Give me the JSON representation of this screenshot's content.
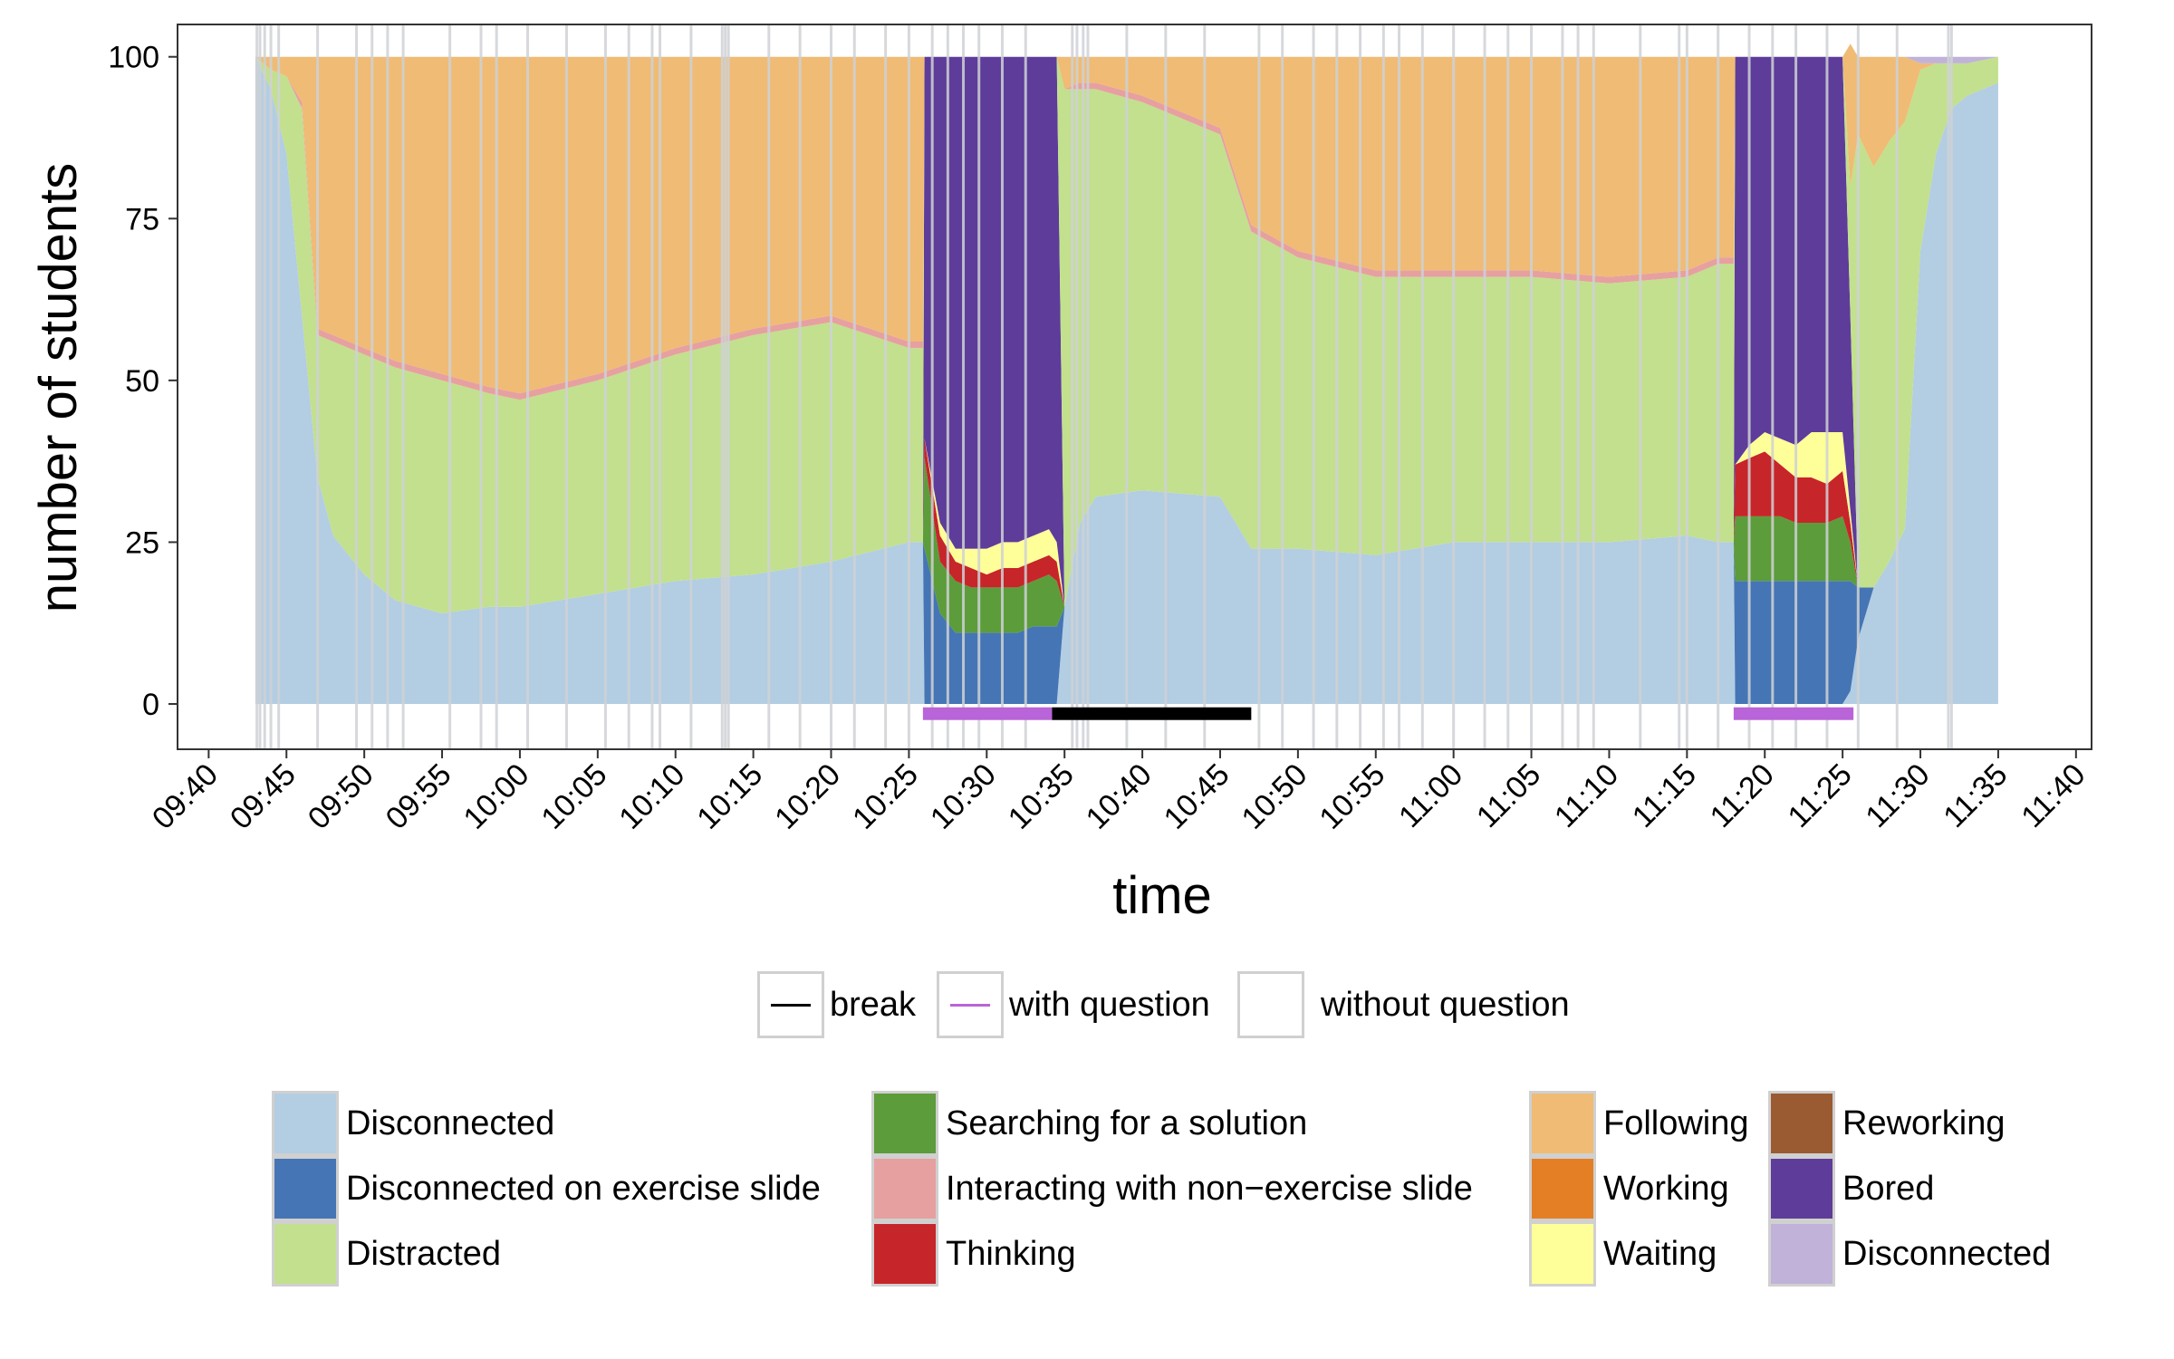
{
  "chart_data": {
    "type": "area",
    "title": "",
    "xlabel": "time",
    "ylabel": "number of students",
    "x_range": [
      "09:38",
      "11:41"
    ],
    "ylim": [
      -7,
      105
    ],
    "y_ticks": [
      0,
      25,
      50,
      75,
      100
    ],
    "x_ticks": [
      "09:40",
      "09:45",
      "09:50",
      "09:55",
      "10:00",
      "10:05",
      "10:10",
      "10:15",
      "10:20",
      "10:25",
      "10:30",
      "10:35",
      "10:40",
      "10:45",
      "10:50",
      "10:55",
      "11:00",
      "11:05",
      "11:10",
      "11:15",
      "11:20",
      "11:25",
      "11:30",
      "11:35",
      "11:40"
    ],
    "grid": false,
    "stack_order": [
      "Disconnected",
      "Disconnected on exercise slide",
      "Searching for a solution",
      "Thinking",
      "Waiting",
      "Bored",
      "Distracted",
      "Interacting with non-exercise slide",
      "Following",
      "Disconnected (2)"
    ],
    "x": [
      "09:43",
      "09:44",
      "09:45",
      "09:46",
      "09:47",
      "09:48",
      "09:50",
      "09:52",
      "09:55",
      "09:58",
      "10:00",
      "10:05",
      "10:10",
      "10:15",
      "10:20",
      "10:25",
      "10:25.9",
      "10:26",
      "10:27",
      "10:28",
      "10:29",
      "10:30",
      "10:31",
      "10:32",
      "10:33",
      "10:34",
      "10:34.5",
      "10:35",
      "10:36",
      "10:37",
      "10:40",
      "10:45",
      "10:47",
      "10:50",
      "10:55",
      "11:00",
      "11:05",
      "11:10",
      "11:15",
      "11:17",
      "11:18",
      "11:18.1",
      "11:19",
      "11:20",
      "11:21",
      "11:22",
      "11:23",
      "11:24",
      "11:25",
      "11:25.5",
      "11:26",
      "11:27",
      "11:28",
      "11:29",
      "11:30",
      "11:31",
      "11:32",
      "11:33",
      "11:35"
    ],
    "series": [
      {
        "name": "Disconnected",
        "color": "#b3cde3",
        "values": [
          100,
          95,
          85,
          60,
          35,
          26,
          20,
          16,
          14,
          15,
          15,
          17,
          19,
          20,
          22,
          25,
          25,
          0,
          0,
          0,
          0,
          0,
          0,
          0,
          0,
          0,
          0,
          15,
          28,
          32,
          33,
          32,
          24,
          24,
          23,
          25,
          25,
          25,
          26,
          25,
          25,
          0,
          0,
          0,
          0,
          0,
          0,
          0,
          0,
          2,
          10,
          18,
          22,
          27,
          70,
          85,
          92,
          94,
          96
        ]
      },
      {
        "name": "Disconnected on exercise slide",
        "color": "#4575b4",
        "values": [
          0,
          0,
          0,
          0,
          0,
          0,
          0,
          0,
          0,
          0,
          0,
          0,
          0,
          0,
          0,
          0,
          0,
          24,
          14,
          11,
          11,
          11,
          11,
          11,
          12,
          12,
          12,
          0,
          0,
          0,
          0,
          0,
          0,
          0,
          0,
          0,
          0,
          0,
          0,
          0,
          0,
          19,
          19,
          19,
          19,
          19,
          19,
          19,
          19,
          17,
          8,
          0,
          0,
          0,
          0,
          0,
          0,
          0,
          0
        ]
      },
      {
        "name": "Searching for a solution",
        "color": "#5c9c3a",
        "values": [
          0,
          0,
          0,
          0,
          0,
          0,
          0,
          0,
          0,
          0,
          0,
          0,
          0,
          0,
          0,
          0,
          0,
          14,
          8,
          8,
          7,
          7,
          7,
          7,
          7,
          8,
          7,
          0,
          0,
          0,
          0,
          0,
          0,
          0,
          0,
          0,
          0,
          0,
          0,
          0,
          0,
          10,
          10,
          10,
          10,
          9,
          9,
          9,
          10,
          6,
          0,
          0,
          0,
          0,
          0,
          0,
          0,
          0,
          0
        ]
      },
      {
        "name": "Thinking",
        "color": "#c6252a",
        "values": [
          0,
          0,
          0,
          0,
          0,
          0,
          0,
          0,
          0,
          0,
          0,
          0,
          0,
          0,
          0,
          0,
          0,
          3,
          4,
          3,
          3,
          2,
          3,
          3,
          3,
          3,
          3,
          0,
          0,
          0,
          0,
          0,
          0,
          0,
          0,
          0,
          0,
          0,
          0,
          0,
          0,
          8,
          9,
          10,
          8,
          7,
          7,
          6,
          7,
          3,
          0,
          0,
          0,
          0,
          0,
          0,
          0,
          0,
          0
        ]
      },
      {
        "name": "Waiting",
        "color": "#ffff99",
        "values": [
          0,
          0,
          0,
          0,
          0,
          0,
          0,
          0,
          0,
          0,
          0,
          0,
          0,
          0,
          0,
          0,
          0,
          0,
          2,
          2,
          3,
          4,
          4,
          4,
          4,
          4,
          3,
          0,
          0,
          0,
          0,
          0,
          0,
          0,
          0,
          0,
          0,
          0,
          0,
          0,
          0,
          0,
          2,
          3,
          4,
          5,
          7,
          8,
          6,
          2,
          0,
          0,
          0,
          0,
          0,
          0,
          0,
          0,
          0
        ]
      },
      {
        "name": "Bored",
        "color": "#5e3c99",
        "values": [
          0,
          0,
          0,
          0,
          0,
          0,
          0,
          0,
          0,
          0,
          0,
          0,
          0,
          0,
          0,
          0,
          0,
          59,
          72,
          76,
          76,
          76,
          75,
          75,
          74,
          73,
          75,
          0,
          0,
          0,
          0,
          0,
          0,
          0,
          0,
          0,
          0,
          0,
          0,
          0,
          0,
          63,
          60,
          58,
          59,
          60,
          58,
          58,
          58,
          30,
          0,
          0,
          0,
          0,
          0,
          0,
          0,
          0,
          0
        ]
      },
      {
        "name": "Distracted",
        "color": "#c2e08e",
        "values": [
          0,
          3,
          12,
          32,
          22,
          30,
          34,
          36,
          36,
          33,
          32,
          33,
          35,
          37,
          37,
          30,
          30,
          0,
          0,
          0,
          0,
          0,
          0,
          0,
          0,
          0,
          0,
          80,
          67,
          63,
          60,
          56,
          49,
          45,
          43,
          41,
          41,
          40,
          40,
          43,
          43,
          0,
          0,
          0,
          0,
          0,
          0,
          0,
          0,
          20,
          70,
          65,
          65,
          63,
          28,
          14,
          7,
          5,
          4
        ]
      },
      {
        "name": "Interacting with non-exercise slide",
        "color": "#e7a0a0",
        "values": [
          0,
          0,
          0,
          1,
          1,
          1,
          1,
          1,
          1,
          1,
          1,
          1,
          1,
          1,
          1,
          1,
          1,
          0,
          0,
          0,
          0,
          0,
          0,
          0,
          0,
          0,
          0,
          0,
          1,
          1,
          1,
          1,
          1,
          1,
          1,
          1,
          1,
          1,
          1,
          1,
          1,
          0,
          0,
          0,
          0,
          0,
          0,
          0,
          0,
          0,
          0,
          0,
          0,
          0,
          0,
          0,
          0,
          0,
          0
        ]
      },
      {
        "name": "Following",
        "color": "#f0bb74",
        "values": [
          0,
          2,
          3,
          7,
          42,
          43,
          45,
          47,
          49,
          51,
          52,
          49,
          45,
          42,
          40,
          44,
          44,
          0,
          0,
          0,
          0,
          0,
          0,
          0,
          0,
          0,
          0,
          5,
          4,
          4,
          6,
          11,
          26,
          30,
          33,
          33,
          33,
          34,
          33,
          31,
          31,
          0,
          0,
          0,
          0,
          0,
          0,
          0,
          0,
          22,
          12,
          17,
          13,
          10,
          1,
          0,
          0,
          0,
          0
        ]
      },
      {
        "name": "Disconnected (2)",
        "color": "#c0b2d8",
        "values": [
          0,
          0,
          0,
          0,
          0,
          0,
          0,
          0,
          0,
          0,
          0,
          0,
          0,
          0,
          0,
          0,
          0,
          0,
          0,
          0,
          0,
          0,
          0,
          0,
          0,
          0,
          0,
          0,
          0,
          0,
          0,
          0,
          0,
          0,
          0,
          0,
          0,
          0,
          0,
          0,
          0,
          0,
          0,
          0,
          0,
          0,
          0,
          0,
          0,
          0,
          0,
          0,
          0,
          0,
          1,
          1,
          1,
          1,
          0
        ]
      }
    ],
    "periods": [
      {
        "name": "with question",
        "color": "#b964d8",
        "start": "10:25.9",
        "end": "10:34.2"
      },
      {
        "name": "break",
        "color": "#000000",
        "start": "10:34.2",
        "end": "10:47"
      },
      {
        "name": "with question",
        "color": "#b964d8",
        "start": "11:18",
        "end": "11:25.7"
      }
    ],
    "slide_changes": [
      "09:43.1",
      "09:43.3",
      "09:43.6",
      "09:44",
      "09:44.5",
      "09:47",
      "09:49.5",
      "09:50.5",
      "09:51.5",
      "09:52.5",
      "09:55.5",
      "09:57.5",
      "09:58.5",
      "10:00.5",
      "10:03",
      "10:05.5",
      "10:07",
      "10:08.5",
      "10:09",
      "10:11",
      "10:13",
      "10:13.2",
      "10:13.4",
      "10:16",
      "10:18",
      "10:20",
      "10:21.5",
      "10:23.5",
      "10:25",
      "10:26.5",
      "10:27.5",
      "10:28.5",
      "10:29.5",
      "10:31",
      "10:32.5",
      "10:35.5",
      "10:35.8",
      "10:36.2",
      "10:36.5",
      "10:39",
      "10:41.5",
      "10:44",
      "10:47.5",
      "10:49",
      "10:51",
      "10:52.5",
      "10:54",
      "10:55.5",
      "10:56.5",
      "10:58",
      "11:00",
      "11:02",
      "11:03.5",
      "11:05",
      "11:07",
      "11:08",
      "11:09",
      "11:12",
      "11:14.5",
      "11:15",
      "11:17",
      "11:19",
      "11:20.5",
      "11:22",
      "11:24",
      "11:26",
      "11:28.5",
      "11:31.8",
      "11:32"
    ]
  },
  "legend": {
    "periods": [
      {
        "label": "break",
        "color": "#000000"
      },
      {
        "label": "with question",
        "color": "#b964d8"
      },
      {
        "label": "without question",
        "color": ""
      }
    ],
    "states": [
      {
        "label": "Disconnected",
        "color": "#b3cde3"
      },
      {
        "label": "Disconnected on exercise slide",
        "color": "#4575b4"
      },
      {
        "label": "Distracted",
        "color": "#c2e08e"
      },
      {
        "label": "Searching for a solution",
        "color": "#5c9c3a"
      },
      {
        "label": "Interacting with non−exercise slide",
        "color": "#e7a0a0"
      },
      {
        "label": "Thinking",
        "color": "#c6252a"
      },
      {
        "label": "Following",
        "color": "#f0bb74"
      },
      {
        "label": "Working",
        "color": "#e47f26"
      },
      {
        "label": "Waiting",
        "color": "#ffff99"
      },
      {
        "label": "Reworking",
        "color": "#9a5a32"
      },
      {
        "label": "Bored",
        "color": "#5e3c99"
      },
      {
        "label": "Disconnected",
        "color": "#c0b2d8"
      }
    ]
  }
}
